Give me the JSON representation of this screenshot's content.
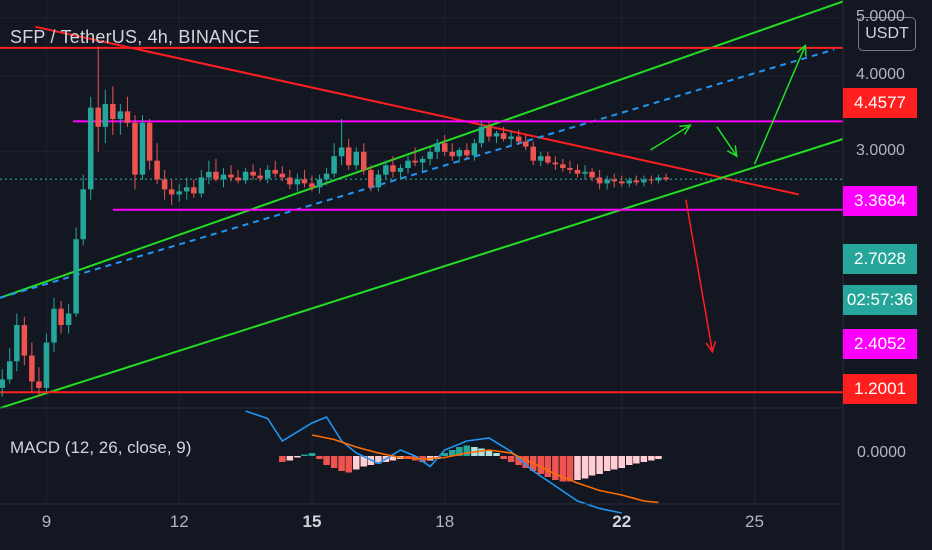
{
  "header": {
    "title": "SFP / TetherUS, 4h, BINANCE",
    "currency_button": "USDT"
  },
  "macd": {
    "label": "MACD (12, 26, close, 9)",
    "zero_label": "0.0000"
  },
  "price_axis": {
    "ticks": [
      "5.0000",
      "4.0000",
      "3.0000"
    ]
  },
  "price_labels": [
    {
      "text": "4.4577",
      "value": 4.4577,
      "bg": "#ff1f1f",
      "fg": "#ffffff",
      "name": "resistance-price-label"
    },
    {
      "text": "3.3684",
      "value": 3.3684,
      "bg": "#ff00ff",
      "fg": "#ffffff",
      "name": "range-top-price-label"
    },
    {
      "text": "2.7028",
      "value": 2.7028,
      "bg": "#26a69a",
      "fg": "#ffffff",
      "name": "current-price-label"
    },
    {
      "text": "02:57:36",
      "value": null,
      "bg": "#26a69a",
      "fg": "#ffffff",
      "name": "candle-countdown-label"
    },
    {
      "text": "2.4052",
      "value": 2.4052,
      "bg": "#ff00ff",
      "fg": "#ffffff",
      "name": "range-bottom-price-label"
    },
    {
      "text": "1.2001",
      "value": 1.2001,
      "bg": "#ff1f1f",
      "fg": "#ffffff",
      "name": "support-price-label"
    }
  ],
  "x_axis": {
    "ticks": [
      {
        "label": "9",
        "bold": false
      },
      {
        "label": "12",
        "bold": false
      },
      {
        "label": "15",
        "bold": true
      },
      {
        "label": "18",
        "bold": false
      },
      {
        "label": "22",
        "bold": true
      },
      {
        "label": "25",
        "bold": false
      }
    ]
  },
  "chart_data": {
    "type": "candlestick",
    "symbol": "SFP / TetherUS",
    "interval": "4h",
    "exchange": "BINANCE",
    "x_unit": "day of month",
    "y_scale": "log",
    "ylim": [
      1.13,
      5.35
    ],
    "xlim": [
      7.95,
      27.0
    ],
    "colors": {
      "up": "#26a69a",
      "down": "#ef5350",
      "red": "#ff1f1f",
      "green": "#22dd22",
      "magenta": "#ff00ff",
      "blue": "#2196f3"
    },
    "candles": [
      [
        8.0,
        1.22,
        1.31,
        1.18,
        1.26
      ],
      [
        8.17,
        1.26,
        1.42,
        1.24,
        1.35
      ],
      [
        8.33,
        1.35,
        1.62,
        1.3,
        1.55
      ],
      [
        8.5,
        1.55,
        1.6,
        1.33,
        1.38
      ],
      [
        8.67,
        1.38,
        1.45,
        1.2,
        1.25
      ],
      [
        8.83,
        1.25,
        1.32,
        1.18,
        1.22
      ],
      [
        9.0,
        1.22,
        1.5,
        1.2,
        1.45
      ],
      [
        9.17,
        1.45,
        1.72,
        1.4,
        1.65
      ],
      [
        9.33,
        1.65,
        1.7,
        1.5,
        1.55
      ],
      [
        9.5,
        1.55,
        1.68,
        1.5,
        1.62
      ],
      [
        9.67,
        1.62,
        2.25,
        1.6,
        2.15
      ],
      [
        9.83,
        2.15,
        2.75,
        2.1,
        2.6
      ],
      [
        10.0,
        2.6,
        3.7,
        2.5,
        3.55
      ],
      [
        10.17,
        3.55,
        4.48,
        3.0,
        3.3
      ],
      [
        10.33,
        3.3,
        3.8,
        3.1,
        3.6
      ],
      [
        10.5,
        3.6,
        3.85,
        3.2,
        3.4
      ],
      [
        10.67,
        3.4,
        3.6,
        3.2,
        3.5
      ],
      [
        10.83,
        3.5,
        3.7,
        3.3,
        3.35
      ],
      [
        11.0,
        3.35,
        3.45,
        2.6,
        2.75
      ],
      [
        11.17,
        2.75,
        3.45,
        2.7,
        3.35
      ],
      [
        11.33,
        3.35,
        3.4,
        2.8,
        2.9
      ],
      [
        11.5,
        2.9,
        3.1,
        2.65,
        2.7
      ],
      [
        11.67,
        2.7,
        2.8,
        2.5,
        2.6
      ],
      [
        11.83,
        2.6,
        2.7,
        2.45,
        2.55
      ],
      [
        12.0,
        2.55,
        2.65,
        2.48,
        2.58
      ],
      [
        12.17,
        2.58,
        2.72,
        2.5,
        2.62
      ],
      [
        12.33,
        2.62,
        2.7,
        2.52,
        2.56
      ],
      [
        12.5,
        2.56,
        2.8,
        2.52,
        2.72
      ],
      [
        12.67,
        2.72,
        2.9,
        2.65,
        2.78
      ],
      [
        12.83,
        2.78,
        2.92,
        2.68,
        2.7
      ],
      [
        13.0,
        2.7,
        2.82,
        2.62,
        2.75
      ],
      [
        13.17,
        2.75,
        2.85,
        2.68,
        2.72
      ],
      [
        13.33,
        2.72,
        2.8,
        2.66,
        2.69
      ],
      [
        13.5,
        2.69,
        2.82,
        2.65,
        2.78
      ],
      [
        13.67,
        2.78,
        2.86,
        2.7,
        2.74
      ],
      [
        13.83,
        2.74,
        2.82,
        2.68,
        2.71
      ],
      [
        14.0,
        2.71,
        2.85,
        2.66,
        2.8
      ],
      [
        14.17,
        2.8,
        2.9,
        2.72,
        2.76
      ],
      [
        14.33,
        2.76,
        2.84,
        2.68,
        2.72
      ],
      [
        14.5,
        2.72,
        2.8,
        2.6,
        2.65
      ],
      [
        14.67,
        2.65,
        2.76,
        2.58,
        2.7
      ],
      [
        14.83,
        2.7,
        2.8,
        2.62,
        2.66
      ],
      [
        15.0,
        2.66,
        2.74,
        2.58,
        2.62
      ],
      [
        15.17,
        2.62,
        2.75,
        2.56,
        2.7
      ],
      [
        15.33,
        2.7,
        2.82,
        2.64,
        2.76
      ],
      [
        15.5,
        2.76,
        3.1,
        2.72,
        2.95
      ],
      [
        15.67,
        2.95,
        3.4,
        2.85,
        3.05
      ],
      [
        15.83,
        3.05,
        3.15,
        2.8,
        2.85
      ],
      [
        16.0,
        2.85,
        3.05,
        2.8,
        3.0
      ],
      [
        16.17,
        3.0,
        3.1,
        2.75,
        2.8
      ],
      [
        16.33,
        2.8,
        2.85,
        2.58,
        2.62
      ],
      [
        16.5,
        2.62,
        2.8,
        2.58,
        2.75
      ],
      [
        16.67,
        2.75,
        2.9,
        2.7,
        2.85
      ],
      [
        16.83,
        2.85,
        2.95,
        2.72,
        2.78
      ],
      [
        17.0,
        2.78,
        2.86,
        2.7,
        2.82
      ],
      [
        17.17,
        2.82,
        2.95,
        2.76,
        2.9
      ],
      [
        17.33,
        2.9,
        3.05,
        2.84,
        2.88
      ],
      [
        17.5,
        2.88,
        2.95,
        2.78,
        2.92
      ],
      [
        17.67,
        2.92,
        3.05,
        2.85,
        3.0
      ],
      [
        17.83,
        3.0,
        3.15,
        2.92,
        3.1
      ],
      [
        18.0,
        3.1,
        3.2,
        2.95,
        3.0
      ],
      [
        18.17,
        3.0,
        3.1,
        2.9,
        2.95
      ],
      [
        18.33,
        2.95,
        3.05,
        2.88,
        3.02
      ],
      [
        18.5,
        3.02,
        3.1,
        2.92,
        2.96
      ],
      [
        18.67,
        2.96,
        3.15,
        2.9,
        3.1
      ],
      [
        18.83,
        3.1,
        3.37,
        3.05,
        3.3
      ],
      [
        19.0,
        3.3,
        3.36,
        3.12,
        3.18
      ],
      [
        19.17,
        3.18,
        3.25,
        3.1,
        3.22
      ],
      [
        19.33,
        3.22,
        3.3,
        3.12,
        3.15
      ],
      [
        19.5,
        3.15,
        3.25,
        3.08,
        3.18
      ],
      [
        19.67,
        3.18,
        3.26,
        3.08,
        3.12
      ],
      [
        19.83,
        3.12,
        3.2,
        3.02,
        3.06
      ],
      [
        20.0,
        3.06,
        3.12,
        2.85,
        2.9
      ],
      [
        20.17,
        2.9,
        3.0,
        2.84,
        2.95
      ],
      [
        20.33,
        2.95,
        3.0,
        2.86,
        2.88
      ],
      [
        20.5,
        2.88,
        2.95,
        2.8,
        2.86
      ],
      [
        20.67,
        2.86,
        2.92,
        2.78,
        2.82
      ],
      [
        20.83,
        2.82,
        2.9,
        2.76,
        2.8
      ],
      [
        21.0,
        2.8,
        2.86,
        2.72,
        2.76
      ],
      [
        21.17,
        2.76,
        2.85,
        2.7,
        2.78
      ],
      [
        21.33,
        2.78,
        2.82,
        2.68,
        2.72
      ],
      [
        21.5,
        2.72,
        2.8,
        2.6,
        2.66
      ],
      [
        21.67,
        2.66,
        2.74,
        2.6,
        2.7
      ],
      [
        21.83,
        2.7,
        2.76,
        2.62,
        2.68
      ],
      [
        22.0,
        2.68,
        2.74,
        2.63,
        2.66
      ],
      [
        22.17,
        2.66,
        2.72,
        2.62,
        2.69
      ],
      [
        22.33,
        2.69,
        2.74,
        2.64,
        2.67
      ],
      [
        22.5,
        2.67,
        2.74,
        2.63,
        2.7
      ],
      [
        22.67,
        2.7,
        2.74,
        2.65,
        2.69
      ],
      [
        22.83,
        2.69,
        2.75,
        2.66,
        2.72
      ],
      [
        23.0,
        2.72,
        2.76,
        2.68,
        2.7
      ]
    ],
    "drawings": [
      {
        "name": "descending-trendline",
        "color": "#ff1f1f",
        "points": [
          [
            8.75,
            4.83
          ],
          [
            26.0,
            2.55
          ]
        ],
        "dashed": false
      },
      {
        "name": "channel-upper-line",
        "color": "#22dd22",
        "points": [
          [
            7.95,
            1.72
          ],
          [
            27.0,
            5.32
          ]
        ],
        "dashed": false
      },
      {
        "name": "channel-lower-line",
        "color": "#22dd22",
        "points": [
          [
            7.95,
            1.13
          ],
          [
            27.0,
            3.15
          ]
        ],
        "dashed": false
      },
      {
        "name": "channel-midline",
        "color": "#2196f3",
        "points": [
          [
            7.95,
            1.72
          ],
          [
            26.8,
            4.43
          ]
        ],
        "dashed": true
      },
      {
        "name": "resistance-line",
        "color": "#ff1f1f",
        "points": [
          [
            7.95,
            4.4577
          ],
          [
            27.0,
            4.4577
          ]
        ],
        "dashed": false
      },
      {
        "name": "support-line",
        "color": "#ff1f1f",
        "points": [
          [
            7.95,
            1.2001
          ],
          [
            27.0,
            1.2001
          ]
        ],
        "dashed": false
      },
      {
        "name": "range-top-line",
        "color": "#ff00ff",
        "points": [
          [
            9.6,
            3.3684
          ],
          [
            27.0,
            3.3684
          ]
        ],
        "dashed": false
      },
      {
        "name": "range-bottom-line",
        "color": "#ff00ff",
        "points": [
          [
            10.5,
            2.4052
          ],
          [
            27.0,
            2.4052
          ]
        ],
        "dashed": false
      },
      {
        "name": "current-price-line",
        "color": "#26a69a",
        "points": [
          [
            7.95,
            2.7028
          ],
          [
            27.0,
            2.7028
          ]
        ],
        "dashed": true
      }
    ],
    "arrows": [
      {
        "name": "bullish-arrow-up-1",
        "color": "#22dd22",
        "from": [
          22.65,
          3.02
        ],
        "to": [
          23.55,
          3.32
        ]
      },
      {
        "name": "bullish-arrow-down",
        "color": "#22dd22",
        "from": [
          24.15,
          3.3
        ],
        "to": [
          24.6,
          2.95
        ]
      },
      {
        "name": "bullish-arrow-up-2",
        "color": "#22dd22",
        "from": [
          25.0,
          2.86
        ],
        "to": [
          26.15,
          4.5
        ]
      },
      {
        "name": "bearish-arrow-down",
        "color": "#ff1f1f",
        "from": [
          23.45,
          2.5
        ],
        "to": [
          24.05,
          1.4
        ]
      }
    ],
    "macd_histogram": [
      [
        14.33,
        -0.04
      ],
      [
        14.5,
        -0.03
      ],
      [
        14.67,
        -0.01
      ],
      [
        14.83,
        0.01
      ],
      [
        15.0,
        0.02
      ],
      [
        15.17,
        -0.02
      ],
      [
        15.33,
        -0.06
      ],
      [
        15.5,
        -0.08
      ],
      [
        15.67,
        -0.1
      ],
      [
        15.83,
        -0.11
      ],
      [
        16.0,
        -0.09
      ],
      [
        16.17,
        -0.07
      ],
      [
        16.33,
        -0.06
      ],
      [
        16.5,
        -0.05
      ],
      [
        16.67,
        -0.04
      ],
      [
        16.83,
        -0.03
      ],
      [
        17.0,
        -0.02
      ],
      [
        17.17,
        -0.02
      ],
      [
        17.33,
        -0.03
      ],
      [
        17.5,
        -0.04
      ],
      [
        17.67,
        -0.03
      ],
      [
        17.83,
        -0.02
      ],
      [
        18.0,
        0.02
      ],
      [
        18.17,
        0.04
      ],
      [
        18.33,
        0.06
      ],
      [
        18.5,
        0.07
      ],
      [
        18.67,
        0.06
      ],
      [
        18.83,
        0.05
      ],
      [
        19.0,
        0.04
      ],
      [
        19.17,
        0.02
      ],
      [
        19.33,
        -0.02
      ],
      [
        19.5,
        -0.04
      ],
      [
        19.67,
        -0.06
      ],
      [
        19.83,
        -0.08
      ],
      [
        20.0,
        -0.1
      ],
      [
        20.17,
        -0.12
      ],
      [
        20.33,
        -0.14
      ],
      [
        20.5,
        -0.16
      ],
      [
        20.67,
        -0.17
      ],
      [
        20.83,
        -0.17
      ],
      [
        21.0,
        -0.16
      ],
      [
        21.17,
        -0.15
      ],
      [
        21.33,
        -0.13
      ],
      [
        21.5,
        -0.12
      ],
      [
        21.67,
        -0.1
      ],
      [
        21.83,
        -0.09
      ],
      [
        22.0,
        -0.08
      ],
      [
        22.17,
        -0.06
      ],
      [
        22.33,
        -0.05
      ],
      [
        22.5,
        -0.04
      ],
      [
        22.67,
        -0.03
      ],
      [
        22.83,
        -0.02
      ]
    ],
    "macd_line": [
      [
        13.5,
        0.3
      ],
      [
        14.0,
        0.25
      ],
      [
        14.33,
        0.1
      ],
      [
        15.0,
        0.22
      ],
      [
        15.33,
        0.26
      ],
      [
        15.67,
        0.1
      ],
      [
        16.0,
        0.02
      ],
      [
        16.5,
        -0.05
      ],
      [
        17.0,
        0.04
      ],
      [
        17.33,
        0.0
      ],
      [
        17.67,
        -0.07
      ],
      [
        18.0,
        0.04
      ],
      [
        18.5,
        0.1
      ],
      [
        19.0,
        0.12
      ],
      [
        19.5,
        0.03
      ],
      [
        20.0,
        -0.1
      ],
      [
        20.5,
        -0.2
      ],
      [
        21.0,
        -0.3
      ],
      [
        21.5,
        -0.35
      ],
      [
        22.0,
        -0.38
      ]
    ],
    "signal_line": [
      [
        15.0,
        0.14
      ],
      [
        15.5,
        0.11
      ],
      [
        16.0,
        0.06
      ],
      [
        16.5,
        0.02
      ],
      [
        17.0,
        -0.01
      ],
      [
        17.5,
        -0.02
      ],
      [
        18.0,
        -0.01
      ],
      [
        18.5,
        0.02
      ],
      [
        19.0,
        0.04
      ],
      [
        19.5,
        0.02
      ],
      [
        20.0,
        -0.05
      ],
      [
        20.5,
        -0.12
      ],
      [
        21.0,
        -0.18
      ],
      [
        21.5,
        -0.23
      ],
      [
        22.0,
        -0.26
      ],
      [
        22.5,
        -0.3
      ],
      [
        22.83,
        -0.31
      ]
    ],
    "macd_ylim": [
      -0.32,
      0.32
    ]
  }
}
